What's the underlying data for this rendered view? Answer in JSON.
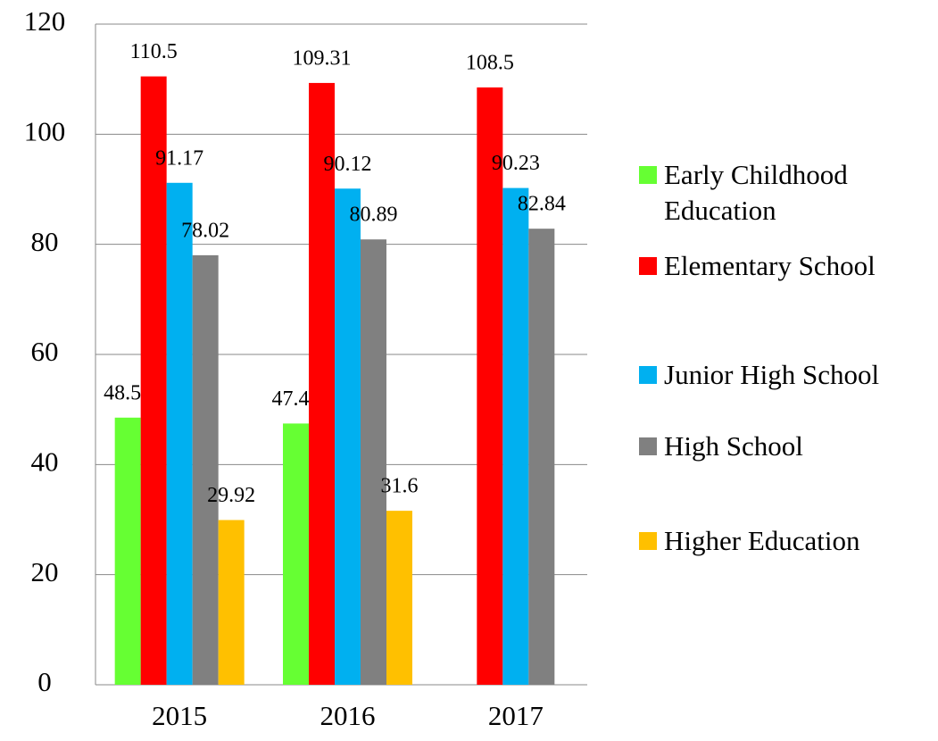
{
  "chart_data": {
    "type": "bar",
    "categories": [
      "2015",
      "2016",
      "2017"
    ],
    "series": [
      {
        "name": "Early Childhood Education",
        "color": "#66ff33",
        "values": [
          48.52,
          47.45,
          null
        ]
      },
      {
        "name": "Elementary School",
        "color": "#ff0000",
        "values": [
          110.5,
          109.31,
          108.5
        ]
      },
      {
        "name": "Junior High School",
        "color": "#00b0f0",
        "values": [
          91.17,
          90.12,
          90.23
        ]
      },
      {
        "name": "High School",
        "color": "#808080",
        "values": [
          78.02,
          80.89,
          82.84
        ]
      },
      {
        "name": "Higher Education",
        "color": "#ffc000",
        "values": [
          29.92,
          31.6,
          null
        ]
      }
    ],
    "ylim": [
      0,
      120
    ],
    "yticks": [
      0,
      20,
      40,
      60,
      80,
      100,
      120
    ],
    "grid": true,
    "legend": "right"
  }
}
